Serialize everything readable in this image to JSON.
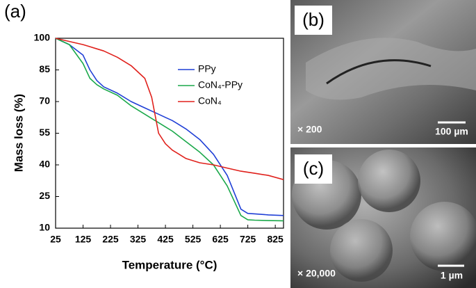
{
  "chart_data": {
    "type": "line",
    "panel_label": "(a)",
    "x_label": "Temperature (°C)",
    "y_label": "Mass loss (%)",
    "x": [
      25,
      75,
      125,
      150,
      175,
      200,
      250,
      300,
      350,
      375,
      400,
      425,
      450,
      500,
      550,
      600,
      650,
      700,
      725,
      750,
      800,
      855
    ],
    "series": [
      {
        "name": "PPy",
        "color": "#1f3fd6",
        "values": [
          100,
          97,
          92,
          85,
          80,
          77,
          74,
          70,
          67,
          65.5,
          64,
          62.5,
          61,
          57,
          52,
          45,
          35,
          19,
          17,
          16.8,
          16.3,
          16
        ]
      },
      {
        "name": "CoN₄-PPy",
        "color": "#1aa84a",
        "values": [
          100,
          97,
          88,
          81,
          78,
          76,
          73,
          68,
          64,
          62,
          60,
          58,
          56,
          51,
          46,
          40,
          30,
          16,
          14,
          13.8,
          13.6,
          13.5
        ]
      },
      {
        "name": "CoN₄",
        "color": "#e0201b",
        "values": [
          100,
          98.5,
          97,
          96,
          95,
          94,
          91,
          87,
          81,
          72,
          55,
          50,
          47,
          43,
          41,
          40,
          38.5,
          37,
          36.5,
          36,
          35,
          33
        ]
      }
    ],
    "xlim": [
      25,
      855
    ],
    "xticks": [
      25,
      125,
      225,
      325,
      425,
      525,
      625,
      725,
      825
    ],
    "ylim": [
      10,
      100
    ],
    "yticks": [
      10,
      25,
      40,
      55,
      70,
      85,
      100
    ]
  },
  "images": [
    {
      "label": "(b)",
      "magnification": "× 200",
      "scale_bar": "100 µm"
    },
    {
      "label": "(c)",
      "magnification": "× 20,000",
      "scale_bar": "1 µm"
    }
  ]
}
